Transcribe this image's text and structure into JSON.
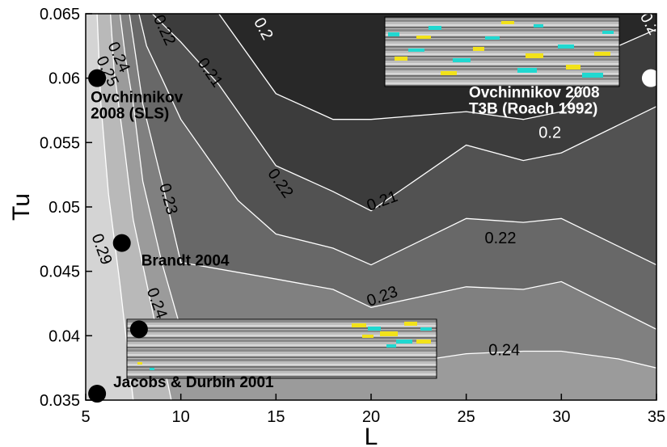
{
  "chart_data": {
    "type": "contour",
    "title": "",
    "xlabel": "L",
    "ylabel": "Tu",
    "xlim": [
      5,
      35
    ],
    "ylim": [
      0.035,
      0.065
    ],
    "x_ticks": [
      "5",
      "10",
      "15",
      "20",
      "25",
      "30",
      "35"
    ],
    "y_ticks": [
      "0.035",
      "0.04",
      "0.045",
      "0.05",
      "0.055",
      "0.06",
      "0.065"
    ],
    "contour_levels": [
      0.2,
      0.21,
      0.22,
      0.23,
      0.24,
      0.25,
      0.29
    ],
    "band_colors": [
      "#282828",
      "#3c3c3c",
      "#525252",
      "#686868",
      "#808080",
      "#9b9b9b",
      "#b9b9b9",
      "#d4d4d4",
      "#ececec"
    ],
    "contour_lines": [
      {
        "level": "0.2",
        "x": [
          12,
          15,
          18,
          20,
          25,
          28,
          30,
          33,
          35
        ],
        "y": [
          0.065,
          0.0588,
          0.0568,
          0.0568,
          0.0574,
          0.0568,
          0.0574,
          0.0625,
          0.0638
        ]
      },
      {
        "level": "0.21",
        "x": [
          8.5,
          10,
          12,
          15,
          18,
          20,
          25,
          28,
          30,
          35
        ],
        "y": [
          0.065,
          0.0628,
          0.0595,
          0.0532,
          0.0512,
          0.0497,
          0.0548,
          0.0536,
          0.0542,
          0.0578
        ]
      },
      {
        "level": "0.22",
        "x": [
          7.8,
          8.2,
          9,
          10,
          13,
          15,
          18,
          20,
          25,
          28,
          30,
          35
        ],
        "y": [
          0.065,
          0.0625,
          0.06,
          0.0568,
          0.0505,
          0.0479,
          0.0468,
          0.0455,
          0.0491,
          0.0488,
          0.0491,
          0.0455
        ]
      },
      {
        "level": "0.23",
        "x": [
          7.3,
          7.6,
          8,
          9,
          10,
          15,
          18,
          20,
          25,
          28,
          30,
          35
        ],
        "y": [
          0.065,
          0.062,
          0.058,
          0.052,
          0.0457,
          0.0444,
          0.0436,
          0.0422,
          0.0438,
          0.0436,
          0.0442,
          0.0405
        ]
      },
      {
        "level": "0.24",
        "x": [
          6.8,
          7.1,
          7.5,
          8,
          9,
          10,
          15,
          18,
          20,
          25,
          28,
          30,
          33,
          35
        ],
        "y": [
          0.065,
          0.0615,
          0.058,
          0.052,
          0.0457,
          0.0405,
          0.0381,
          0.0378,
          0.0375,
          0.0386,
          0.0388,
          0.0388,
          0.0382,
          0.0375
        ]
      },
      {
        "level": "0.25",
        "x": [
          6.3,
          6.5,
          7,
          7.5,
          8.5,
          9.5
        ],
        "y": [
          0.065,
          0.0605,
          0.055,
          0.049,
          0.042,
          0.035
        ]
      },
      {
        "level": "0.29",
        "x": [
          5.6,
          5.8,
          6.2,
          6.8,
          7.5
        ],
        "y": [
          0.065,
          0.058,
          0.051,
          0.044,
          0.035
        ]
      }
    ],
    "contour_labels": [
      {
        "text": "0.2",
        "x": 14.3,
        "y": 0.0638,
        "rot": 62,
        "light": true
      },
      {
        "text": "0.2",
        "x": 29.4,
        "y": 0.0557,
        "rot": 0,
        "light": true
      },
      {
        "text": "0.2",
        "x": 34.6,
        "y": 0.0642,
        "rot": 62,
        "light": true
      },
      {
        "text": "0.21",
        "x": 11.5,
        "y": 0.0604,
        "rot": 55,
        "light": false
      },
      {
        "text": "0.21",
        "x": 20.6,
        "y": 0.0504,
        "rot": -20,
        "light": false
      },
      {
        "text": "0.22",
        "x": 9.1,
        "y": 0.0637,
        "rot": 65,
        "light": false
      },
      {
        "text": "0.22",
        "x": 15.2,
        "y": 0.0518,
        "rot": 55,
        "light": false
      },
      {
        "text": "0.22",
        "x": 26.8,
        "y": 0.0475,
        "rot": 0,
        "light": false
      },
      {
        "text": "0.23",
        "x": 9.3,
        "y": 0.0506,
        "rot": 75,
        "light": false
      },
      {
        "text": "0.23",
        "x": 20.6,
        "y": 0.043,
        "rot": -20,
        "light": false
      },
      {
        "text": "0.24",
        "x": 6.7,
        "y": 0.0616,
        "rot": 65,
        "light": false
      },
      {
        "text": "0.24",
        "x": 8.7,
        "y": 0.0425,
        "rot": 70,
        "light": false
      },
      {
        "text": "0.24",
        "x": 27.0,
        "y": 0.0388,
        "rot": 0,
        "light": false
      },
      {
        "text": "0.25",
        "x": 6.1,
        "y": 0.0605,
        "rot": 65,
        "light": false
      },
      {
        "text": "0.29",
        "x": 5.8,
        "y": 0.0467,
        "rot": 70,
        "light": false
      }
    ],
    "points": [
      {
        "x": 5.6,
        "y": 0.06,
        "label": "Ovchinnikov\n2008 (SLS)",
        "color": "#000000"
      },
      {
        "x": 6.9,
        "y": 0.0472,
        "label": "Brandt 2004",
        "color": "#000000"
      },
      {
        "x": 7.8,
        "y": 0.0405,
        "label": "",
        "color": "#000000"
      },
      {
        "x": 5.6,
        "y": 0.0355,
        "label": "Jacobs & Durbin 2001",
        "color": "#000000"
      },
      {
        "x": 34.7,
        "y": 0.06,
        "label": "Ovchinnikov 2008\nT3B (Roach 1992)",
        "color": "#ffffff"
      }
    ],
    "insets": [
      "flow-visualization-top-right",
      "flow-visualization-bottom"
    ]
  }
}
